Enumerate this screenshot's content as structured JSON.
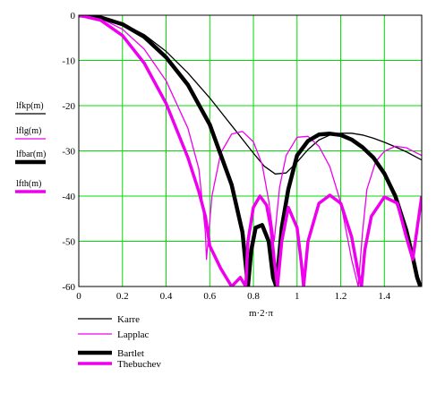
{
  "chart_data": {
    "type": "line",
    "xlabel": "m·2·π",
    "xlim": [
      0,
      1.571
    ],
    "ylim": [
      -60,
      0
    ],
    "xticks": [
      "0",
      "0.2",
      "0.4",
      "0.6",
      "0.8",
      "1",
      "1.2",
      "1.4"
    ],
    "yticks": [
      "0",
      "-10",
      "-20",
      "-30",
      "-40",
      "-50",
      "-60"
    ],
    "grid": true,
    "grid_color": "#00dd00",
    "ylabels": [
      "lfkp(m)",
      "lflg(m)",
      "lfbar(m)",
      "lfth(m)"
    ],
    "legend_placement": "bottom-left",
    "series": [
      {
        "name": "Karre",
        "color": "#000000",
        "width": 1.3,
        "x": [
          0,
          0.1,
          0.2,
          0.3,
          0.4,
          0.5,
          0.6,
          0.7,
          0.8,
          0.85,
          0.9,
          0.95,
          1.0,
          1.05,
          1.1,
          1.15,
          1.2,
          1.25,
          1.3,
          1.35,
          1.4,
          1.45,
          1.5,
          1.57
        ],
        "y": [
          0,
          -0.4,
          -1.8,
          -4.3,
          -8,
          -12.8,
          -18.3,
          -24.4,
          -30.5,
          -33.4,
          -35.1,
          -34.9,
          -32.5,
          -29.7,
          -27.6,
          -26.5,
          -26.1,
          -26.1,
          -26.5,
          -27.2,
          -28.1,
          -29.1,
          -30.2,
          -32
        ]
      },
      {
        "name": "Lapplac",
        "color": "#ee00ee",
        "width": 1.3,
        "x": [
          0,
          0.1,
          0.2,
          0.3,
          0.4,
          0.5,
          0.55,
          0.58,
          0.585,
          0.61,
          0.65,
          0.7,
          0.75,
          0.8,
          0.84,
          0.87,
          0.895,
          0.92,
          0.95,
          1.0,
          1.05,
          1.1,
          1.15,
          1.2,
          1.25,
          1.28,
          1.3,
          1.32,
          1.36,
          1.4,
          1.45,
          1.5,
          1.57
        ],
        "y": [
          0,
          -0.7,
          -3.1,
          -7.5,
          -14.5,
          -25,
          -34,
          -48,
          -54,
          -40,
          -30.5,
          -26.3,
          -25.7,
          -28,
          -33,
          -41,
          -50,
          -38,
          -31,
          -27,
          -26.8,
          -29,
          -33.5,
          -41.5,
          -54,
          -60,
          -48,
          -38.5,
          -32.4,
          -30.1,
          -29,
          -29.3,
          -31
        ]
      },
      {
        "name": "Bartlet",
        "color": "#000000",
        "width": 4.5,
        "x": [
          0,
          0.1,
          0.2,
          0.3,
          0.4,
          0.5,
          0.6,
          0.7,
          0.75,
          0.775,
          0.79,
          0.81,
          0.84,
          0.87,
          0.89,
          0.905,
          0.93,
          0.96,
          1.0,
          1.05,
          1.1,
          1.15,
          1.2,
          1.25,
          1.3,
          1.35,
          1.4,
          1.45,
          1.5,
          1.53,
          1.55,
          1.565
        ],
        "y": [
          0,
          -0.5,
          -2,
          -4.8,
          -9.3,
          -15.4,
          -24.2,
          -37.5,
          -48,
          -60,
          -52,
          -47,
          -46.4,
          -50,
          -58,
          -60,
          -47,
          -38.5,
          -31,
          -27.8,
          -26.4,
          -26.2,
          -26.5,
          -27.5,
          -29.2,
          -31.5,
          -35,
          -40,
          -47.5,
          -53.5,
          -58,
          -60
        ]
      },
      {
        "name": "Thebuchev",
        "color": "#ee00ee",
        "width": 3.5,
        "x": [
          0,
          0.1,
          0.2,
          0.3,
          0.4,
          0.5,
          0.55,
          0.58,
          0.6,
          0.65,
          0.7,
          0.74,
          0.765,
          0.775,
          0.8,
          0.83,
          0.86,
          0.88,
          0.895,
          0.91,
          0.93,
          0.96,
          1.0,
          1.02,
          1.03,
          1.05,
          1.1,
          1.15,
          1.2,
          1.25,
          1.28,
          1.295,
          1.31,
          1.34,
          1.4,
          1.46,
          1.5,
          1.53,
          1.571
        ],
        "y": [
          0,
          -1.1,
          -4.5,
          -10.6,
          -19.5,
          -31.5,
          -39,
          -44.5,
          -51,
          -56,
          -60,
          -58,
          -60,
          -50,
          -42.5,
          -40,
          -42,
          -47,
          -54,
          -60,
          -50,
          -42.5,
          -47,
          -55,
          -60,
          -50,
          -41.6,
          -39.8,
          -41.6,
          -49,
          -57,
          -60,
          -52,
          -44.5,
          -40.2,
          -41.6,
          -49,
          -54,
          -40
        ]
      }
    ]
  }
}
